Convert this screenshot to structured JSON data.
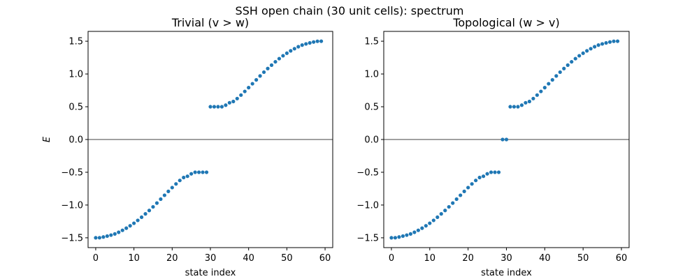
{
  "figure": {
    "suptitle": "SSH open chain (30 unit cells): spectrum"
  },
  "colors": {
    "points": "#1f77b4",
    "zero_line": "#000000"
  },
  "chart_data": [
    {
      "type": "scatter",
      "title": "Trivial (v > w)",
      "xlabel": "state index",
      "ylabel": "E",
      "xlim": [
        -2,
        62
      ],
      "ylim": [
        -1.65,
        1.65
      ],
      "xticks": [
        0,
        10,
        20,
        30,
        40,
        50,
        60
      ],
      "yticks": [
        -1.5,
        -1.0,
        -0.5,
        0.0,
        0.5,
        1.0,
        1.5
      ],
      "ytick_labels": [
        "−1.5",
        "−1.0",
        "−0.5",
        "0.0",
        "0.5",
        "1.0",
        "1.5"
      ],
      "hline": 0,
      "grid": false,
      "x": [
        0,
        1,
        2,
        3,
        4,
        5,
        6,
        7,
        8,
        9,
        10,
        11,
        12,
        13,
        14,
        15,
        16,
        17,
        18,
        19,
        20,
        21,
        22,
        23,
        24,
        25,
        26,
        27,
        28,
        29,
        30,
        31,
        32,
        33,
        34,
        35,
        36,
        37,
        38,
        39,
        40,
        41,
        42,
        43,
        44,
        45,
        46,
        47,
        48,
        49,
        50,
        51,
        52,
        53,
        54,
        55,
        56,
        57,
        58,
        59
      ],
      "y": [
        -1.5,
        -1.499,
        -1.488,
        -1.474,
        -1.459,
        -1.441,
        -1.416,
        -1.386,
        -1.353,
        -1.317,
        -1.278,
        -1.234,
        -1.186,
        -1.135,
        -1.083,
        -1.028,
        -0.97,
        -0.91,
        -0.851,
        -0.792,
        -0.734,
        -0.678,
        -0.625,
        -0.58,
        -0.561,
        -0.524,
        -0.5,
        -0.5,
        -0.5,
        -0.5,
        0.5,
        0.5,
        0.5,
        0.5,
        0.524,
        0.561,
        0.58,
        0.625,
        0.678,
        0.734,
        0.792,
        0.851,
        0.91,
        0.97,
        1.028,
        1.083,
        1.135,
        1.186,
        1.234,
        1.278,
        1.317,
        1.353,
        1.386,
        1.416,
        1.441,
        1.459,
        1.474,
        1.488,
        1.499,
        1.5
      ]
    },
    {
      "type": "scatter",
      "title": "Topological (w > v)",
      "xlabel": "state index",
      "ylabel": "",
      "xlim": [
        -2,
        62
      ],
      "ylim": [
        -1.65,
        1.65
      ],
      "xticks": [
        0,
        10,
        20,
        30,
        40,
        50,
        60
      ],
      "yticks": [
        -1.5,
        -1.0,
        -0.5,
        0.0,
        0.5,
        1.0,
        1.5
      ],
      "ytick_labels": [
        "−1.5",
        "−1.0",
        "−0.5",
        "0.0",
        "0.5",
        "1.0",
        "1.5"
      ],
      "hline": 0,
      "grid": false,
      "x": [
        0,
        1,
        2,
        3,
        4,
        5,
        6,
        7,
        8,
        9,
        10,
        11,
        12,
        13,
        14,
        15,
        16,
        17,
        18,
        19,
        20,
        21,
        22,
        23,
        24,
        25,
        26,
        27,
        28,
        29,
        30,
        31,
        32,
        33,
        34,
        35,
        36,
        37,
        38,
        39,
        40,
        41,
        42,
        43,
        44,
        45,
        46,
        47,
        48,
        49,
        50,
        51,
        52,
        53,
        54,
        55,
        56,
        57,
        58,
        59
      ],
      "y": [
        -1.5,
        -1.499,
        -1.488,
        -1.474,
        -1.459,
        -1.441,
        -1.416,
        -1.386,
        -1.353,
        -1.317,
        -1.278,
        -1.234,
        -1.186,
        -1.135,
        -1.083,
        -1.028,
        -0.97,
        -0.91,
        -0.851,
        -0.792,
        -0.734,
        -0.678,
        -0.625,
        -0.58,
        -0.561,
        -0.524,
        -0.5,
        -0.5,
        -0.5,
        0.0,
        0.0,
        0.5,
        0.5,
        0.5,
        0.524,
        0.561,
        0.58,
        0.625,
        0.678,
        0.734,
        0.792,
        0.851,
        0.91,
        0.97,
        1.028,
        1.083,
        1.135,
        1.186,
        1.234,
        1.278,
        1.317,
        1.353,
        1.386,
        1.416,
        1.441,
        1.459,
        1.474,
        1.488,
        1.499,
        1.5
      ]
    }
  ]
}
